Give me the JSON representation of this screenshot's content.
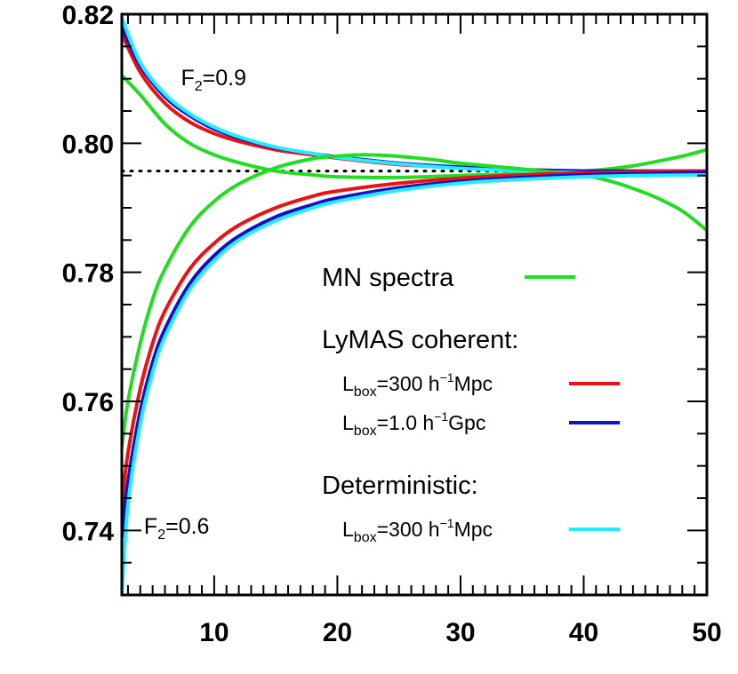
{
  "chart_data": {
    "type": "line",
    "title": "",
    "xlabel": "",
    "ylabel": "",
    "xlim": [
      2.5,
      50
    ],
    "ylim": [
      0.73,
      0.82
    ],
    "x_ticks": [
      10,
      20,
      30,
      40,
      50
    ],
    "x_tick_labels": [
      "10",
      "20",
      "30",
      "40",
      "50"
    ],
    "y_ticks": [
      0.74,
      0.76,
      0.78,
      0.8,
      0.82
    ],
    "y_tick_labels": [
      "0.74",
      "0.76",
      "0.78",
      "0.80",
      "0.82"
    ],
    "grid": false,
    "legend": {
      "placement": "lower-right",
      "entries": [
        {
          "label": "MN spectra",
          "color": "#22dd22"
        },
        {
          "header": "LyMAS coherent:"
        },
        {
          "label_main": "L",
          "label_sub": "box",
          "label_rest": "=300 h",
          "label_sup": "−1",
          "label_end": "Mpc",
          "color": "#ee1111"
        },
        {
          "label_main": "L",
          "label_sub": "box",
          "label_rest": "=1.0 h",
          "label_sup": "−1",
          "label_end": "Gpc",
          "color": "#1111cc"
        },
        {
          "header": "Deterministic:"
        },
        {
          "label_main": "L",
          "label_sub": "box",
          "label_rest": "=300 h",
          "label_sup": "−1",
          "label_end": "Mpc",
          "color": "#22eeff"
        }
      ]
    },
    "annotations": [
      {
        "pre": "F",
        "sub": "2",
        "post": "=0.9",
        "at": [
          7.3,
          0.809
        ]
      },
      {
        "pre": "F",
        "sub": "2",
        "post": "=0.6",
        "at": [
          4.3,
          0.7395
        ]
      }
    ],
    "reference_line": {
      "y": 0.7957,
      "style": "dotted",
      "color": "#000000"
    },
    "series": [
      {
        "group": "F2=0.9",
        "source": "MN spectra",
        "color": "#22dd22",
        "x": [
          2.5,
          4,
          6,
          8,
          10,
          12,
          15,
          18,
          20,
          25,
          30,
          35,
          40,
          42,
          44,
          46,
          48,
          50
        ],
        "y": [
          0.8105,
          0.8075,
          0.803,
          0.8,
          0.7982,
          0.797,
          0.7957,
          0.7951,
          0.7948,
          0.7947,
          0.795,
          0.7953,
          0.7957,
          0.796,
          0.7965,
          0.7972,
          0.798,
          0.799
        ]
      },
      {
        "group": "F2=0.9",
        "source": "LyMAS coherent 300",
        "color": "#ee1111",
        "x": [
          2.5,
          4,
          6,
          8,
          10,
          12,
          15,
          18,
          20,
          25,
          30,
          35,
          40,
          45,
          50
        ],
        "y": [
          0.817,
          0.811,
          0.8062,
          0.8033,
          0.8015,
          0.8003,
          0.799,
          0.7982,
          0.7977,
          0.7967,
          0.7962,
          0.7958,
          0.7956,
          0.7955,
          0.7955
        ]
      },
      {
        "group": "F2=0.9",
        "source": "LyMAS coherent 1.0 Gpc",
        "color": "#1111cc",
        "x": [
          2.5,
          4,
          6,
          8,
          10,
          12,
          15,
          18,
          20,
          25,
          30,
          35,
          40,
          45,
          50
        ],
        "y": [
          0.818,
          0.812,
          0.8072,
          0.8043,
          0.8022,
          0.8008,
          0.7993,
          0.7984,
          0.7979,
          0.7969,
          0.7963,
          0.7959,
          0.7957,
          0.7957,
          0.7957
        ]
      },
      {
        "group": "F2=0.9",
        "source": "Deterministic 300",
        "color": "#22eeff",
        "x": [
          2.5,
          4,
          6,
          8,
          10,
          12,
          15,
          18,
          20,
          25,
          30,
          35,
          40,
          45,
          50
        ],
        "y": [
          0.8195,
          0.8125,
          0.8076,
          0.8046,
          0.8025,
          0.801,
          0.7994,
          0.7984,
          0.7978,
          0.7968,
          0.7961,
          0.7957,
          0.7954,
          0.7952,
          0.7951
        ]
      },
      {
        "group": "F2=0.6",
        "source": "MN spectra",
        "color": "#22dd22",
        "x": [
          2.5,
          3,
          4,
          5,
          6,
          8,
          10,
          12,
          15,
          18,
          20,
          22,
          24,
          26,
          28,
          30,
          35,
          40,
          42,
          44,
          46,
          48,
          50
        ],
        "y": [
          0.753,
          0.76,
          0.769,
          0.7758,
          0.7805,
          0.787,
          0.791,
          0.7937,
          0.7962,
          0.7976,
          0.798,
          0.7982,
          0.7981,
          0.7978,
          0.7974,
          0.7969,
          0.796,
          0.795,
          0.7942,
          0.793,
          0.7915,
          0.7895,
          0.7865
        ]
      },
      {
        "group": "F2=0.6",
        "source": "LyMAS coherent 300",
        "color": "#ee1111",
        "x": [
          2.5,
          3,
          4,
          5,
          6,
          8,
          10,
          12,
          15,
          18,
          20,
          25,
          30,
          35,
          40,
          45,
          50
        ],
        "y": [
          0.744,
          0.752,
          0.762,
          0.769,
          0.774,
          0.7805,
          0.7845,
          0.7873,
          0.79,
          0.7918,
          0.7926,
          0.7938,
          0.7946,
          0.7951,
          0.7954,
          0.7956,
          0.7957
        ]
      },
      {
        "group": "F2=0.6",
        "source": "LyMAS coherent 1.0 Gpc",
        "color": "#1111cc",
        "x": [
          2.5,
          3,
          4,
          5,
          6,
          8,
          10,
          12,
          15,
          18,
          20,
          25,
          30,
          35,
          40,
          45,
          50
        ],
        "y": [
          0.739,
          0.7475,
          0.7585,
          0.766,
          0.7712,
          0.7782,
          0.7826,
          0.7856,
          0.7886,
          0.7905,
          0.7915,
          0.7931,
          0.7941,
          0.7947,
          0.7951,
          0.7953,
          0.7955
        ]
      },
      {
        "group": "F2=0.6",
        "source": "Deterministic 300",
        "color": "#22eeff",
        "x": [
          2.5,
          3,
          4,
          5,
          6,
          8,
          10,
          12,
          15,
          18,
          20,
          25,
          30,
          35,
          40,
          45,
          50
        ],
        "y": [
          0.73,
          0.744,
          0.7565,
          0.7645,
          0.77,
          0.7773,
          0.7818,
          0.785,
          0.788,
          0.79,
          0.791,
          0.7927,
          0.7938,
          0.7944,
          0.7948,
          0.795,
          0.7951
        ]
      }
    ]
  }
}
